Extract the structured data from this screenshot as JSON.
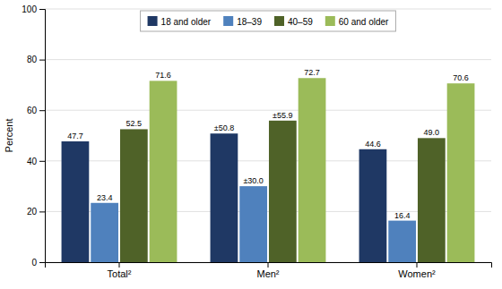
{
  "chart_data": {
    "type": "bar",
    "ylabel": "Percent",
    "categories": [
      "Total²",
      "Men²",
      "Women²"
    ],
    "series": [
      {
        "name": "18 and older",
        "color": "#1f3864",
        "values": [
          47.7,
          50.8,
          44.6
        ],
        "value_labels": [
          "47.7",
          "±50.8",
          "44.6"
        ]
      },
      {
        "name": "18–39",
        "color": "#4f81bd",
        "values": [
          23.4,
          30.0,
          16.4
        ],
        "value_labels": [
          "23.4",
          "±30.0",
          "16.4"
        ]
      },
      {
        "name": "40–59",
        "color": "#4f6228",
        "values": [
          52.5,
          55.9,
          49.0
        ],
        "value_labels": [
          "52.5",
          "±55.9",
          "49.0"
        ]
      },
      {
        "name": "60 and older",
        "color": "#9bbb59",
        "values": [
          71.6,
          72.7,
          70.6
        ],
        "value_labels": [
          "71.6",
          "72.7",
          "70.6"
        ]
      }
    ],
    "ylim": [
      0,
      100
    ],
    "yticks": [
      0,
      20,
      40,
      60,
      80,
      100
    ],
    "grid": true,
    "legend": "top",
    "data_labels": true
  }
}
